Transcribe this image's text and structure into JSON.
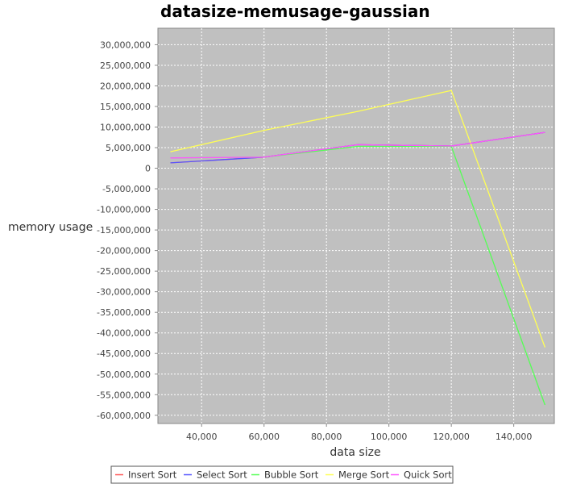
{
  "chart_data": {
    "type": "line",
    "title": "datasize-memusage-gaussian",
    "xlabel": "data size",
    "ylabel": "memory usage",
    "xlim": [
      26000,
      153000
    ],
    "ylim": [
      -62000000,
      34000000
    ],
    "x_ticks": [
      40000,
      60000,
      80000,
      100000,
      120000,
      140000
    ],
    "x_tick_labels": [
      "40,000",
      "60,000",
      "80,000",
      "100,000",
      "120,000",
      "140,000"
    ],
    "y_ticks": [
      30000000,
      25000000,
      20000000,
      15000000,
      10000000,
      5000000,
      0,
      -5000000,
      -10000000,
      -15000000,
      -20000000,
      -25000000,
      -30000000,
      -35000000,
      -40000000,
      -45000000,
      -50000000,
      -55000000,
      -60000000
    ],
    "y_tick_labels": [
      "30,000,000",
      "25,000,000",
      "20,000,000",
      "15,000,000",
      "10,000,000",
      "5,000,000",
      "0",
      "-5,000,000",
      "-10,000,000",
      "-15,000,000",
      "-20,000,000",
      "-25,000,000",
      "-30,000,000",
      "-35,000,000",
      "-40,000,000",
      "-45,000,000",
      "-50,000,000",
      "-55,000,000",
      "-60,000,000"
    ],
    "grid": true,
    "legend_position": "bottom",
    "plot_background": "#c0c0c0",
    "x": [
      30000,
      60000,
      90000,
      120000,
      150000
    ],
    "series": [
      {
        "name": "Insert Sort",
        "color": "#ff5555",
        "values": [
          1300000,
          2700000,
          5700000,
          5400000,
          8700000
        ]
      },
      {
        "name": "Select Sort",
        "color": "#5555ff",
        "values": [
          1300000,
          2700000,
          5700000,
          5400000,
          8700000
        ]
      },
      {
        "name": "Bubble Sort",
        "color": "#55ff55",
        "values": [
          2500000,
          2700000,
          5300000,
          5300000,
          -57500000
        ]
      },
      {
        "name": "Merge Sort",
        "color": "#ffff55",
        "values": [
          4000000,
          9200000,
          13800000,
          18900000,
          -43500000
        ]
      },
      {
        "name": "Quick Sort",
        "color": "#ff55ff",
        "values": [
          2500000,
          2700000,
          5700000,
          5400000,
          8700000
        ]
      }
    ]
  }
}
